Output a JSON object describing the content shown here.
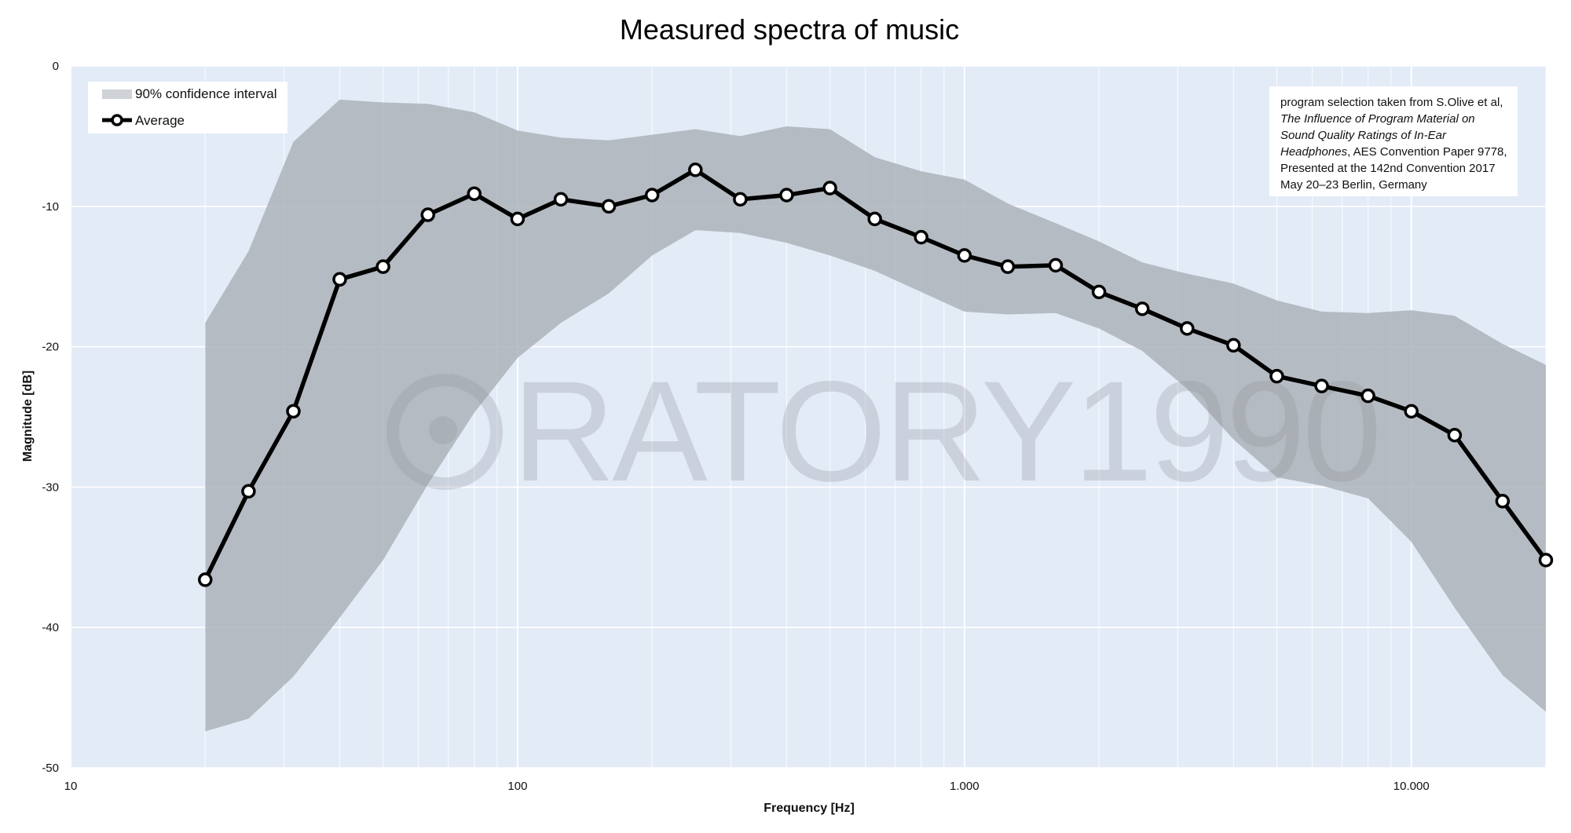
{
  "chart_data": {
    "type": "area",
    "title": "Measured spectra of music",
    "xlabel": "Frequency [Hz]",
    "ylabel": "Magnitude [dB]",
    "x_scale": "log",
    "xlim": [
      10,
      20000
    ],
    "ylim": [
      -50,
      0
    ],
    "x_ticks": [
      {
        "value": 10,
        "label": "10"
      },
      {
        "value": 100,
        "label": "100"
      },
      {
        "value": 1000,
        "label": "1.000"
      },
      {
        "value": 10000,
        "label": "10.000"
      }
    ],
    "y_ticks": [
      {
        "value": 0,
        "label": "0"
      },
      {
        "value": -10,
        "label": "-10"
      },
      {
        "value": -20,
        "label": "-20"
      },
      {
        "value": -30,
        "label": "-30"
      },
      {
        "value": -40,
        "label": "-40"
      },
      {
        "value": -50,
        "label": "-50"
      }
    ],
    "grid": true,
    "legend_position": "top-left",
    "x": [
      20,
      25,
      31.5,
      40,
      50,
      63,
      80,
      100,
      125,
      160,
      200,
      250,
      315,
      400,
      500,
      630,
      800,
      1000,
      1250,
      1600,
      2000,
      2500,
      3150,
      4000,
      5000,
      6300,
      8000,
      10000,
      12500,
      16000,
      20000
    ],
    "series": [
      {
        "name": "Average",
        "type": "line",
        "color": "#000000",
        "values": [
          -36.6,
          -30.3,
          -24.6,
          -15.2,
          -14.3,
          -10.6,
          -9.1,
          -10.9,
          -9.5,
          -10.0,
          -9.2,
          -7.4,
          -9.5,
          -9.2,
          -8.7,
          -10.9,
          -12.2,
          -13.5,
          -14.3,
          -14.2,
          -16.1,
          -17.3,
          -18.7,
          -19.9,
          -22.1,
          -22.8,
          -23.5,
          -24.6,
          -26.3,
          -31.0,
          -35.2
        ]
      },
      {
        "name": "90% confidence interval",
        "type": "band",
        "color": "#a8adb3",
        "upper": [
          -18.3,
          -13.2,
          -5.4,
          -2.4,
          -2.6,
          -2.7,
          -3.3,
          -4.6,
          -5.1,
          -5.3,
          -4.9,
          -4.5,
          -5.0,
          -4.3,
          -4.5,
          -6.5,
          -7.5,
          -8.1,
          -9.8,
          -11.2,
          -12.5,
          -14.0,
          -14.8,
          -15.5,
          -16.7,
          -17.5,
          -17.6,
          -17.4,
          -17.8,
          -19.8,
          -21.3
        ],
        "lower": [
          -47.4,
          -46.5,
          -43.5,
          -39.3,
          -35.2,
          -29.8,
          -24.7,
          -20.8,
          -18.3,
          -16.2,
          -13.5,
          -11.7,
          -11.9,
          -12.6,
          -13.5,
          -14.6,
          -16.1,
          -17.5,
          -17.7,
          -17.6,
          -18.7,
          -20.3,
          -23.0,
          -26.6,
          -29.3,
          -29.9,
          -30.8,
          -33.9,
          -38.6,
          -43.4,
          -46.0
        ]
      }
    ],
    "annotation": {
      "line1": "program selection taken from S.Olive et al,",
      "line2": "The Influence of Program Material on",
      "line3": "Sound Quality Ratings of In-Ear",
      "line4_italic": "Headphones",
      "line4_rest": ", AES Convention Paper 9778,",
      "line5": "Presented at the 142nd Convention 2017",
      "line6": "May 20–23 Berlin, Germany"
    },
    "watermark": "ORATORY1990",
    "colors": {
      "plot_background": "#e3ebf7",
      "band": "#a8adb3",
      "line": "#000000",
      "marker_fill": "#ffffff",
      "grid": "#ffffff"
    }
  }
}
